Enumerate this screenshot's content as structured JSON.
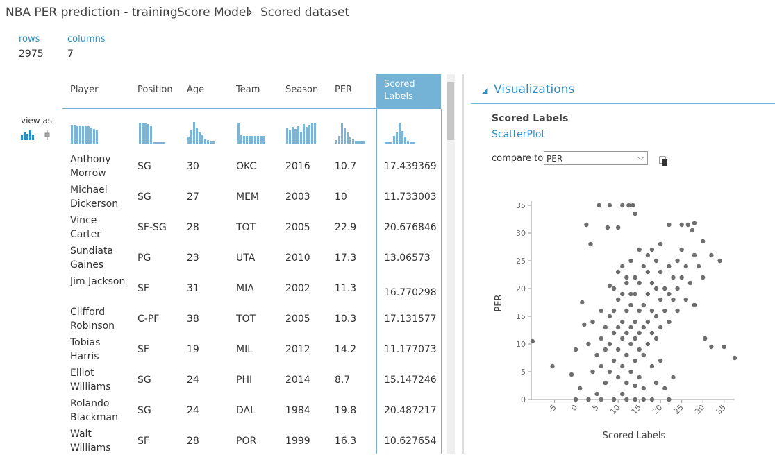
{
  "breadcrumb": [
    "NBA PER prediction - training",
    "Score Model",
    "Scored dataset"
  ],
  "stats": [
    {
      "label": "rows",
      "value": 2975
    },
    {
      "label": "columns",
      "value": 7
    }
  ],
  "view_as": "view as",
  "table": {
    "columns": [
      "Player",
      "Position",
      "Age",
      "Team",
      "Season",
      "PER",
      "Scored Labels"
    ],
    "rows": [
      [
        "Anthony Morrow",
        "SG",
        "30",
        "OKC",
        "2016",
        "10.7",
        "17.439369"
      ],
      [
        "Michael Dickerson",
        "SG",
        "27",
        "MEM",
        "2003",
        "10",
        "11.733003"
      ],
      [
        "Vince Carter",
        "SF-SG",
        "28",
        "TOT",
        "2005",
        "22.9",
        "20.676846"
      ],
      [
        "Sundiata Gaines",
        "PG",
        "23",
        "UTA",
        "2010",
        "17.3",
        "13.06573"
      ],
      [
        "Jim Jackson",
        "SF",
        "31",
        "MIA",
        "2002",
        "11.3",
        "16.770298"
      ],
      [
        "Clifford Robinson",
        "C-PF",
        "38",
        "TOT",
        "2005",
        "10.3",
        "17.131577"
      ],
      [
        "Tobias Harris",
        "SF",
        "19",
        "MIL",
        "2012",
        "14.2",
        "11.177073"
      ],
      [
        "Elliot Williams",
        "SG",
        "24",
        "PHI",
        "2014",
        "8.7",
        "15.147246"
      ],
      [
        "Rolando Blackman",
        "SG",
        "24",
        "DAL",
        "1984",
        "19.8",
        "20.487217"
      ],
      [
        "Walt Williams",
        "SF",
        "28",
        "POR",
        "1999",
        "16.3",
        "10.627654"
      ]
    ]
  },
  "visualizations": {
    "title": "Visualizations",
    "column": "Scored Labels",
    "plot_type": "ScatterPlot",
    "compare_label": "compare to",
    "compare_value": "PER"
  },
  "chart_data": {
    "type": "scatter",
    "x_label": "Scored Labels",
    "y_label": "PER",
    "color": "#6e6e6e",
    "xlim": [
      -11,
      38
    ],
    "ylim": [
      0,
      35
    ],
    "xticks": [
      -5,
      0,
      5,
      10,
      15,
      20,
      25,
      30,
      35
    ],
    "yticks": [
      0,
      5,
      10,
      15,
      20,
      25,
      30,
      35
    ],
    "x": [
      -10.2,
      37.5,
      -5.5,
      5.5,
      8,
      11,
      12.5,
      13.5,
      14,
      2.5,
      7.5,
      10,
      3.5,
      22,
      25,
      26.5,
      28,
      27.5,
      30,
      32,
      34,
      30.5,
      32,
      35,
      22,
      0,
      3,
      6,
      9,
      12,
      14,
      16,
      18,
      2,
      0,
      -1,
      1,
      5,
      21,
      23,
      17,
      8,
      10,
      1.5,
      5,
      6,
      6,
      7,
      7,
      8,
      8,
      8,
      9,
      9,
      9,
      10,
      10,
      10,
      10,
      11,
      11,
      11,
      11,
      12,
      12,
      12,
      12,
      12,
      13,
      13,
      13,
      13,
      14,
      14,
      14,
      14,
      15,
      15,
      15,
      15,
      15,
      16,
      16,
      16,
      17,
      17,
      17,
      18,
      18,
      18,
      18,
      19,
      19,
      19,
      20,
      20,
      20,
      21,
      21,
      22,
      22,
      22,
      23,
      23,
      24,
      24,
      25,
      25,
      26,
      27,
      28,
      29,
      30,
      16,
      14,
      11,
      19,
      20,
      7,
      4,
      3,
      4,
      6,
      9,
      13,
      16,
      18,
      20,
      24,
      26,
      28,
      11,
      15,
      12,
      13,
      14,
      17,
      19
    ],
    "values": [
      10.5,
      7.5,
      6,
      35,
      35,
      35,
      35,
      35,
      33.5,
      31.5,
      31,
      31,
      28,
      31.5,
      31.5,
      31.5,
      31.8,
      30.5,
      28.5,
      26,
      25,
      11,
      9.5,
      9.5,
      0,
      0,
      0,
      0,
      0,
      0,
      0,
      0,
      0,
      13.5,
      9,
      4.5,
      2,
      1,
      2,
      4,
      23,
      20.5,
      23,
      17.5,
      8,
      6,
      11,
      9,
      13,
      5,
      10,
      15,
      7,
      12,
      16,
      4,
      9,
      13,
      18,
      6,
      11,
      14,
      19,
      3,
      8,
      12,
      16,
      21,
      5,
      10,
      13,
      17,
      7,
      11,
      14,
      19,
      4,
      9,
      12,
      16,
      21,
      8,
      13,
      17,
      10,
      14,
      19,
      6,
      12,
      16,
      21,
      11,
      15,
      20,
      13,
      18,
      23,
      16,
      20,
      14,
      19,
      24,
      18,
      22,
      20,
      25,
      22,
      27,
      24,
      21,
      26,
      24,
      22,
      2,
      2.5,
      1,
      3,
      7,
      3,
      5,
      10,
      14,
      16,
      20,
      25,
      24,
      27,
      28,
      16,
      18,
      17,
      24,
      27,
      22,
      19,
      22,
      26,
      25
    ]
  }
}
